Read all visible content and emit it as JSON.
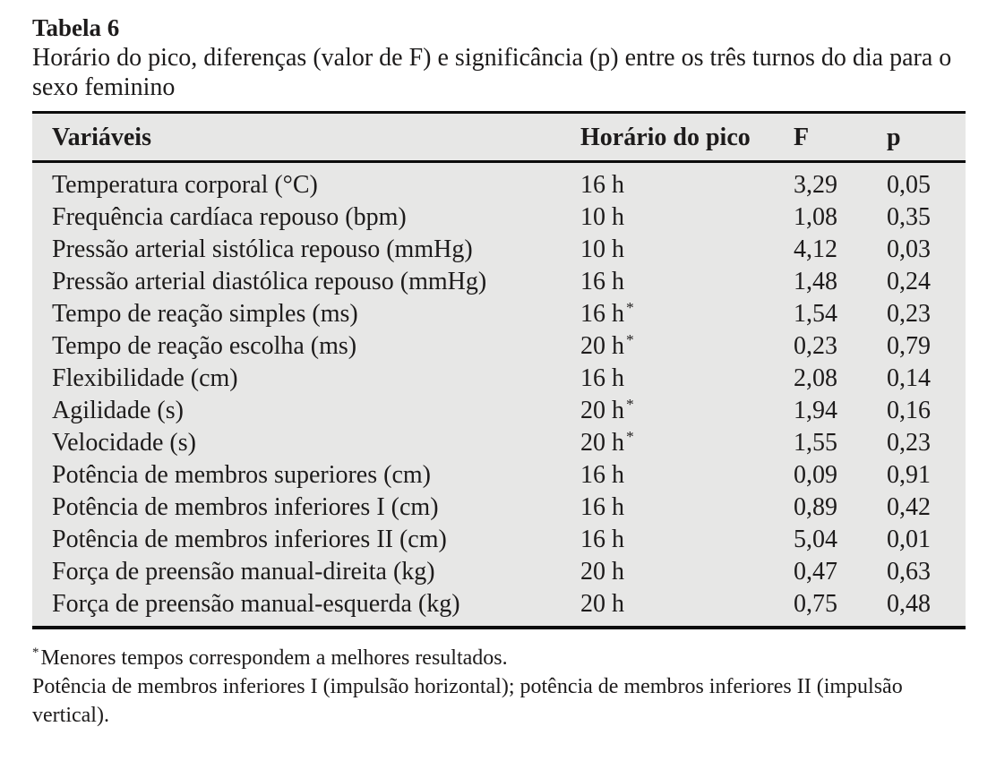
{
  "table": {
    "label": "Tabela 6",
    "caption": "Horário do pico, diferenças (valor de F) e significância (p) entre os três turnos do dia para o sexo feminino",
    "columns": [
      "Variáveis",
      "Horário do pico",
      "F",
      "p"
    ],
    "star_marker": "*",
    "rows": [
      {
        "variavel": "Temperatura corporal (°C)",
        "horario": "16 h",
        "star": false,
        "f": "3,29",
        "p": "0,05"
      },
      {
        "variavel": "Frequência cardíaca repouso (bpm)",
        "horario": "10 h",
        "star": false,
        "f": "1,08",
        "p": "0,35"
      },
      {
        "variavel": "Pressão arterial sistólica repouso (mmHg)",
        "horario": "10 h",
        "star": false,
        "f": "4,12",
        "p": "0,03"
      },
      {
        "variavel": "Pressão arterial diastólica repouso (mmHg)",
        "horario": "16 h",
        "star": false,
        "f": "1,48",
        "p": "0,24"
      },
      {
        "variavel": "Tempo de reação simples (ms)",
        "horario": "16 h",
        "star": true,
        "f": "1,54",
        "p": "0,23"
      },
      {
        "variavel": "Tempo de reação escolha (ms)",
        "horario": "20 h",
        "star": true,
        "f": "0,23",
        "p": "0,79"
      },
      {
        "variavel": "Flexibilidade (cm)",
        "horario": "16 h",
        "star": false,
        "f": "2,08",
        "p": "0,14"
      },
      {
        "variavel": "Agilidade (s)",
        "horario": "20 h",
        "star": true,
        "f": "1,94",
        "p": "0,16"
      },
      {
        "variavel": "Velocidade (s)",
        "horario": "20 h",
        "star": true,
        "f": "1,55",
        "p": "0,23"
      },
      {
        "variavel": "Potência de membros superiores (cm)",
        "horario": "16 h",
        "star": false,
        "f": "0,09",
        "p": "0,91"
      },
      {
        "variavel": "Potência de membros inferiores I (cm)",
        "horario": "16 h",
        "star": false,
        "f": "0,89",
        "p": "0,42"
      },
      {
        "variavel": "Potência de membros inferiores II (cm)",
        "horario": "16 h",
        "star": false,
        "f": "5,04",
        "p": "0,01"
      },
      {
        "variavel": "Força de preensão manual-direita (kg)",
        "horario": "20 h",
        "star": false,
        "f": "0,47",
        "p": "0,63"
      },
      {
        "variavel": "Força de preensão manual-esquerda (kg)",
        "horario": "20 h",
        "star": false,
        "f": "0,75",
        "p": "0,48"
      }
    ],
    "footnotes": [
      {
        "marker": "*",
        "text": "Menores tempos correspondem a melhores resultados."
      },
      {
        "marker": "",
        "text": "Potência de membros inferiores I (impulsão horizontal); potência de membros inferiores II (impulsão vertical)."
      }
    ]
  },
  "colors": {
    "table_background": "#e7e7e6",
    "rule": "#0c0c0c",
    "text": "#1d1b1b",
    "page_background": "#ffffff"
  }
}
